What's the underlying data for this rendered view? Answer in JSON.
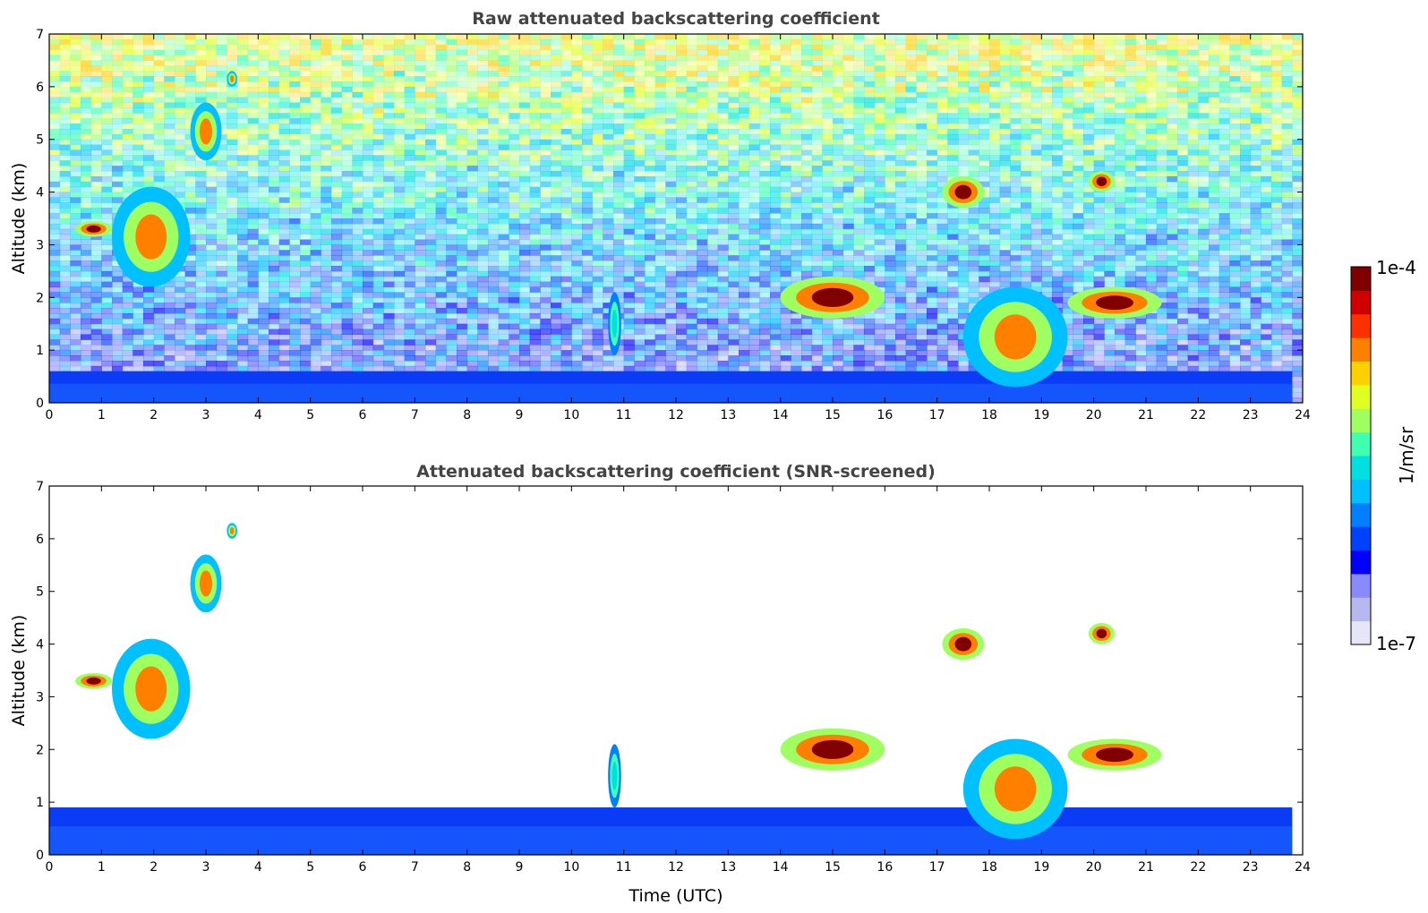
{
  "chart_data": [
    {
      "type": "heatmap",
      "title": "Raw attenuated backscattering coefficient",
      "ylabel": "Altitude (km)",
      "xlabel": "",
      "xlim": [
        0,
        24
      ],
      "ylim": [
        0,
        7
      ],
      "xticks": [
        "0",
        "1",
        "2",
        "3",
        "4",
        "5",
        "6",
        "7",
        "8",
        "9",
        "10",
        "11",
        "12",
        "13",
        "14",
        "15",
        "16",
        "17",
        "18",
        "19",
        "20",
        "21",
        "22",
        "23",
        "24"
      ],
      "yticks": [
        "0",
        "1",
        "2",
        "3",
        "4",
        "5",
        "6",
        "7"
      ],
      "features": [
        {
          "kind": "boundary_layer",
          "x": [
            0,
            23.8
          ],
          "y_top": 0.6
        },
        {
          "kind": "cloud",
          "x": [
            0.5,
            1.2
          ],
          "y": [
            3.15,
            3.45
          ],
          "level": "high"
        },
        {
          "kind": "cloud",
          "x": [
            1.2,
            2.7
          ],
          "y": [
            2.2,
            4.1
          ],
          "level": "mid"
        },
        {
          "kind": "cloud",
          "x": [
            2.7,
            3.3
          ],
          "y": [
            4.6,
            5.7
          ],
          "level": "mid"
        },
        {
          "kind": "cloud",
          "x": [
            3.4,
            3.6
          ],
          "y": [
            6.0,
            6.3
          ],
          "level": "mid"
        },
        {
          "kind": "cloud",
          "x": [
            10.7,
            10.95
          ],
          "y": [
            0.9,
            2.1
          ],
          "level": "low"
        },
        {
          "kind": "cloud",
          "x": [
            14.0,
            16.0
          ],
          "y": [
            1.6,
            2.4
          ],
          "level": "high"
        },
        {
          "kind": "cloud",
          "x": [
            17.1,
            17.9
          ],
          "y": [
            3.7,
            4.3
          ],
          "level": "high"
        },
        {
          "kind": "cloud",
          "x": [
            17.5,
            19.5
          ],
          "y": [
            0.3,
            2.2
          ],
          "level": "mid"
        },
        {
          "kind": "cloud",
          "x": [
            19.5,
            21.3
          ],
          "y": [
            1.6,
            2.2
          ],
          "level": "high"
        },
        {
          "kind": "cloud",
          "x": [
            19.9,
            20.4
          ],
          "y": [
            4.0,
            4.4
          ],
          "level": "high"
        }
      ]
    },
    {
      "type": "heatmap",
      "title": "Attenuated backscattering coefficient (SNR-screened)",
      "ylabel": "Altitude (km)",
      "xlabel": "Time (UTC)",
      "xlim": [
        0,
        24
      ],
      "ylim": [
        0,
        7
      ],
      "xticks": [
        "0",
        "1",
        "2",
        "3",
        "4",
        "5",
        "6",
        "7",
        "8",
        "9",
        "10",
        "11",
        "12",
        "13",
        "14",
        "15",
        "16",
        "17",
        "18",
        "19",
        "20",
        "21",
        "22",
        "23",
        "24"
      ],
      "yticks": [
        "0",
        "1",
        "2",
        "3",
        "4",
        "5",
        "6",
        "7"
      ],
      "features": [
        {
          "kind": "boundary_layer",
          "x": [
            0,
            23.8
          ],
          "y_top": 0.9
        },
        {
          "kind": "cloud",
          "x": [
            0.5,
            1.2
          ],
          "y": [
            3.15,
            3.45
          ],
          "level": "high"
        },
        {
          "kind": "cloud",
          "x": [
            1.2,
            2.7
          ],
          "y": [
            2.2,
            4.1
          ],
          "level": "mid"
        },
        {
          "kind": "cloud",
          "x": [
            2.7,
            3.3
          ],
          "y": [
            4.6,
            5.7
          ],
          "level": "mid"
        },
        {
          "kind": "cloud",
          "x": [
            3.4,
            3.6
          ],
          "y": [
            6.0,
            6.3
          ],
          "level": "mid"
        },
        {
          "kind": "cloud",
          "x": [
            10.7,
            10.95
          ],
          "y": [
            0.9,
            2.1
          ],
          "level": "low"
        },
        {
          "kind": "cloud",
          "x": [
            14.0,
            16.0
          ],
          "y": [
            1.6,
            2.4
          ],
          "level": "high"
        },
        {
          "kind": "cloud",
          "x": [
            17.1,
            17.9
          ],
          "y": [
            3.7,
            4.3
          ],
          "level": "high"
        },
        {
          "kind": "cloud",
          "x": [
            17.5,
            19.5
          ],
          "y": [
            0.3,
            2.2
          ],
          "level": "mid"
        },
        {
          "kind": "cloud",
          "x": [
            19.5,
            21.3
          ],
          "y": [
            1.6,
            2.2
          ],
          "level": "high"
        },
        {
          "kind": "cloud",
          "x": [
            19.9,
            20.4
          ],
          "y": [
            4.0,
            4.4
          ],
          "level": "high"
        }
      ]
    }
  ],
  "colorbar": {
    "label": "1/m/sr",
    "max_label": "1e-4",
    "min_label": "1e-7",
    "colors": [
      "#e6e6f8",
      "#b8b8f0",
      "#8a8aff",
      "#0000ff",
      "#0040ff",
      "#0080ff",
      "#00c0ff",
      "#00e0e0",
      "#40ffb0",
      "#a0ff60",
      "#e0ff20",
      "#ffd000",
      "#ff8000",
      "#ff3000",
      "#d00000",
      "#800000"
    ]
  }
}
